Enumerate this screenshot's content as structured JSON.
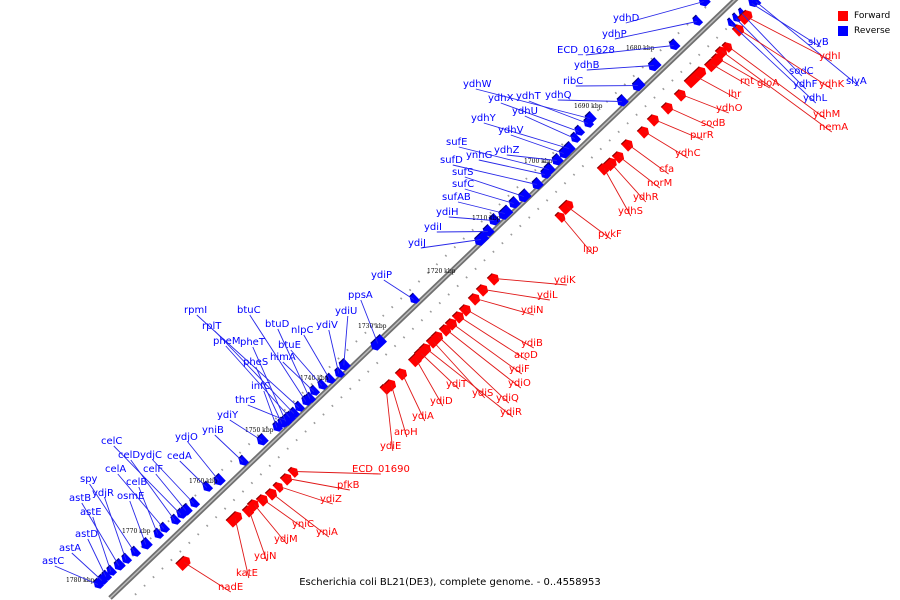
{
  "caption": "Escherichia coli BL21(DE3), complete genome. - 0..4558953",
  "legend": [
    {
      "label": "Forward",
      "color": "#ff0000"
    },
    {
      "label": "Reverse",
      "color": "#0000ff"
    }
  ],
  "colors": {
    "forward": "#ff0000",
    "reverse": "#0000ff",
    "forward_line": "#e01818",
    "reverse_line": "#2828e8",
    "axis": "#707070"
  },
  "ticks": [
    "1680 kbp",
    "1690 kbp",
    "1700 kbp",
    "1710 kbp",
    "1720 kbp",
    "1730 kbp",
    "1740 kbp",
    "1750 kbp",
    "1760 kbp",
    "1770 kbp",
    "1780 kbp"
  ],
  "reverse_genes": [
    "ydhD",
    "ydhP",
    "ECD_01628",
    "ydhB",
    "ribC",
    "ydhQ",
    "ydhW",
    "ydhX",
    "ydhT",
    "ydhU",
    "ydhY",
    "ydhV",
    "ydhZ",
    "sufE",
    "ynhG",
    "sufD",
    "sufS",
    "sufC",
    "sufAB",
    "ydiH",
    "ydiI",
    "ydiJ",
    "ydiP",
    "ppsA",
    "ydiU",
    "ydiV",
    "nlpC",
    "btuE",
    "himA",
    "btuD",
    "btuC",
    "rpmI",
    "rplT",
    "pheM",
    "pheT",
    "pheS",
    "infC",
    "thrS",
    "ydiY",
    "yniB",
    "ydjO",
    "cedA",
    "celF",
    "ydjC",
    "celC",
    "celD",
    "celA",
    "celB",
    "osmE",
    "spy",
    "ydjR",
    "astB",
    "astE",
    "astD",
    "astA",
    "astC",
    "slyB",
    "sodC",
    "ydhF",
    "ydhL",
    "slyA"
  ],
  "forward_genes": [
    "ydhI",
    "ydhK",
    "rnt",
    "gloA",
    "lhr",
    "ydhO",
    "ydhM",
    "nemA",
    "sodB",
    "purR",
    "ydhC",
    "cfa",
    "norM",
    "ydhR",
    "ydhS",
    "pykF",
    "lpp",
    "ydiK",
    "ydiL",
    "ydiN",
    "ydiB",
    "aroD",
    "ydiF",
    "ydiO",
    "ydiQ",
    "ydiS",
    "ydiR",
    "ydiT",
    "ydiD",
    "ydiA",
    "aroH",
    "ydiE",
    "ECD_01690",
    "pfkB",
    "ydiZ",
    "yniA",
    "yniC",
    "ydjM",
    "ydjN",
    "katE",
    "nadE"
  ]
}
